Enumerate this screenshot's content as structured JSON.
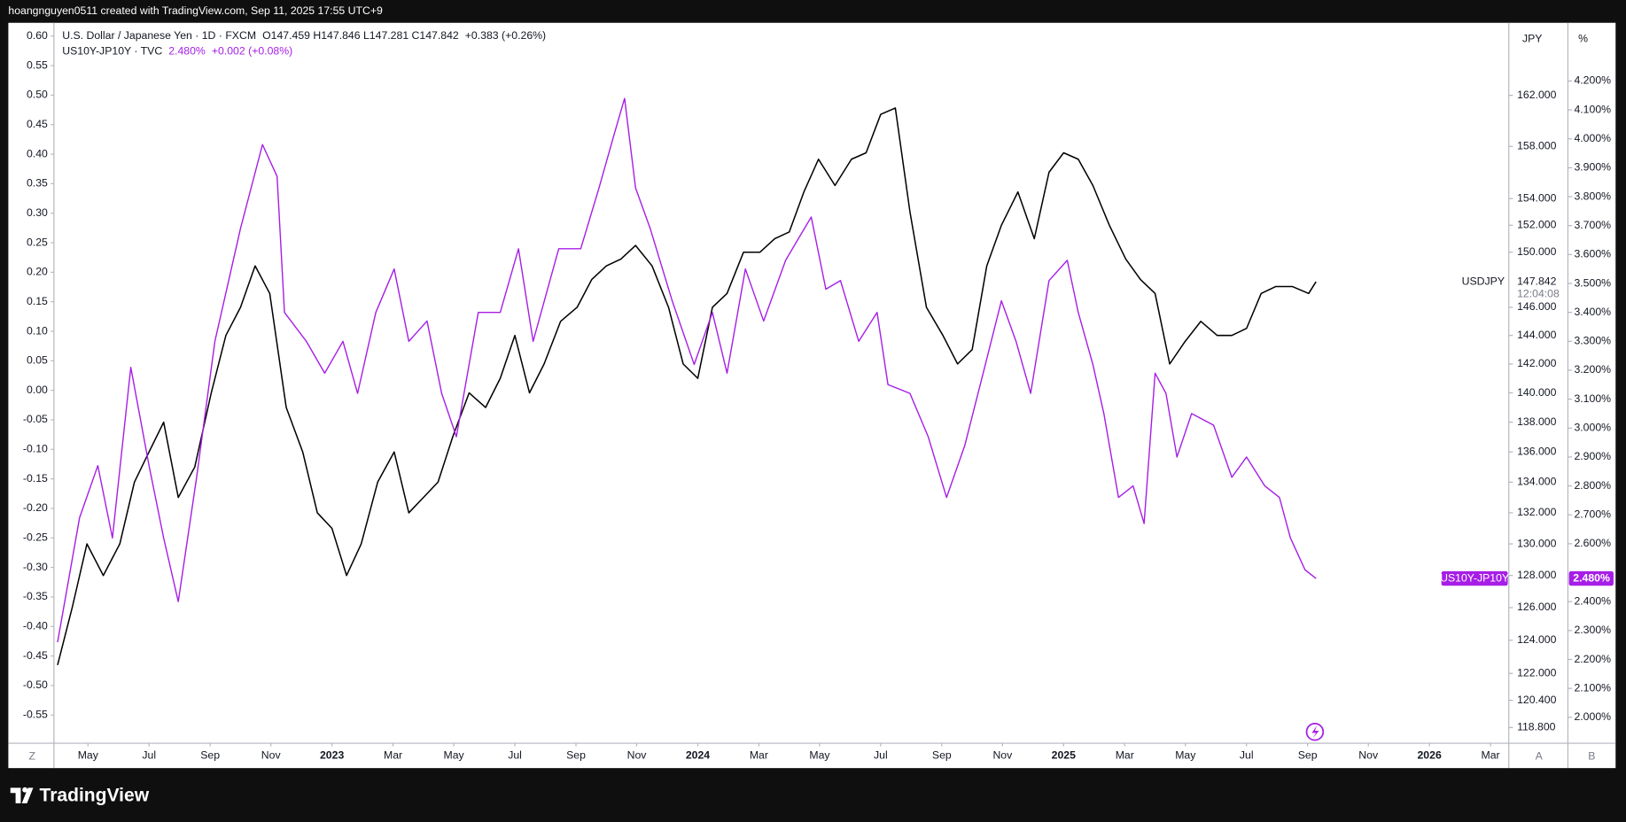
{
  "header": "hoangnguyen0511 created with TradingView.com, Sep 11, 2025 17:55 UTC+9",
  "footer_logo": "TradingView",
  "chart_data": {
    "type": "line",
    "grid": false,
    "corner_labels": [
      "Z",
      "A",
      "B"
    ],
    "xlim": [
      2022.24,
      2026.217
    ],
    "xticks": [
      {
        "value": 2022.333,
        "label": "May"
      },
      {
        "value": 2022.5,
        "label": "Jul"
      },
      {
        "value": 2022.667,
        "label": "Sep"
      },
      {
        "value": 2022.833,
        "label": "Nov"
      },
      2023,
      {
        "value": 2023.167,
        "label": "Mar"
      },
      {
        "value": 2023.333,
        "label": "May"
      },
      {
        "value": 2023.5,
        "label": "Jul"
      },
      {
        "value": 2023.667,
        "label": "Sep"
      },
      {
        "value": 2023.833,
        "label": "Nov"
      },
      2024,
      {
        "value": 2024.167,
        "label": "Mar"
      },
      {
        "value": 2024.333,
        "label": "May"
      },
      {
        "value": 2024.5,
        "label": "Jul"
      },
      {
        "value": 2024.667,
        "label": "Sep"
      },
      {
        "value": 2024.833,
        "label": "Nov"
      },
      2025,
      {
        "value": 2025.167,
        "label": "Mar"
      },
      {
        "value": 2025.333,
        "label": "May"
      },
      {
        "value": 2025.5,
        "label": "Jul"
      },
      {
        "value": 2025.667,
        "label": "Sep"
      },
      {
        "value": 2025.833,
        "label": "Nov"
      },
      2026,
      {
        "value": 2026.167,
        "label": "Mar"
      }
    ],
    "left_axis": {
      "lim": [
        -0.596,
        0.619
      ],
      "ticks": [
        {
          "value": 0.6,
          "label": "0.60"
        },
        0.55,
        {
          "value": 0.5,
          "label": "0.50"
        },
        0.45,
        {
          "value": 0.4,
          "label": "0.40"
        },
        0.35,
        {
          "value": 0.3,
          "label": "0.30"
        },
        0.25,
        {
          "value": 0.2,
          "label": "0.20"
        },
        0.15,
        {
          "value": 0.1,
          "label": "0.10"
        },
        0.05,
        {
          "value": 0,
          "label": "0.00"
        },
        -0.05,
        {
          "value": -0.1,
          "label": "-0.10"
        },
        -0.15,
        {
          "value": -0.2,
          "label": "-0.20"
        },
        -0.25,
        {
          "value": -0.3,
          "label": "-0.30"
        },
        -0.35,
        {
          "value": -0.4,
          "label": "-0.40"
        },
        -0.45,
        {
          "value": -0.5,
          "label": "-0.50"
        },
        -0.55
      ]
    },
    "ylabel": "JPY",
    "ylog": true,
    "ylim": [
      117.95,
      167.7
    ],
    "yticks": [
      {
        "value": 162,
        "label": "162.000"
      },
      {
        "value": 158,
        "label": "158.000"
      },
      {
        "value": 154,
        "label": "154.000"
      },
      {
        "value": 152,
        "label": "152.000"
      },
      {
        "value": 150,
        "label": "150.000"
      },
      {
        "value": 146,
        "label": "146.000"
      },
      {
        "value": 144,
        "label": "144.000"
      },
      {
        "value": 142,
        "label": "142.000"
      },
      {
        "value": 140,
        "label": "140.000"
      },
      {
        "value": 138,
        "label": "138.000"
      },
      {
        "value": 136,
        "label": "136.000"
      },
      {
        "value": 134,
        "label": "134.000"
      },
      {
        "value": 132,
        "label": "132.000"
      },
      {
        "value": 130,
        "label": "130.000"
      },
      {
        "value": 128,
        "label": "128.000"
      },
      {
        "value": 126,
        "label": "126.000"
      },
      {
        "value": 124,
        "label": "124.000"
      },
      {
        "value": 122,
        "label": "122.000"
      },
      {
        "value": 120.4,
        "label": "120.400"
      },
      {
        "value": 118.8,
        "label": "118.800"
      }
    ],
    "y2label": "%",
    "y2lim": [
      1.914,
      4.394
    ],
    "y2ticks": [
      {
        "value": 4.2,
        "label": "4.200%"
      },
      {
        "value": 4.1,
        "label": "4.100%"
      },
      {
        "value": 4.0,
        "label": "4.000%"
      },
      {
        "value": 3.9,
        "label": "3.900%"
      },
      {
        "value": 3.8,
        "label": "3.800%"
      },
      {
        "value": 3.7,
        "label": "3.700%"
      },
      {
        "value": 3.6,
        "label": "3.600%"
      },
      {
        "value": 3.5,
        "label": "3.500%"
      },
      {
        "value": 3.4,
        "label": "3.400%"
      },
      {
        "value": 3.3,
        "label": "3.300%"
      },
      {
        "value": 3.2,
        "label": "3.200%"
      },
      {
        "value": 3.1,
        "label": "3.100%"
      },
      {
        "value": 3.0,
        "label": "3.000%"
      },
      {
        "value": 2.9,
        "label": "2.900%"
      },
      {
        "value": 2.8,
        "label": "2.800%"
      },
      {
        "value": 2.7,
        "label": "2.700%"
      },
      {
        "value": 2.6,
        "label": "2.600%"
      },
      {
        "value": 2.4,
        "label": "2.400%"
      },
      {
        "value": 2.3,
        "label": "2.300%"
      },
      {
        "value": 2.2,
        "label": "2.200%"
      },
      {
        "value": 2.1,
        "label": "2.100%"
      },
      {
        "value": 2.0,
        "label": "2.000%"
      }
    ],
    "series": [
      {
        "name": "USDJPY",
        "color": "#000000",
        "axis": "y",
        "legend_title": "U.S. Dollar / Japanese Yen · 1D · FXCM",
        "legend_ohlc": "O147.459 H147.846 L147.281 C147.842",
        "legend_change": "+0.383 (+0.26%)",
        "countdown": "12:04:08",
        "x": [
          2022.25,
          2022.29,
          2022.33,
          2022.375,
          2022.42,
          2022.46,
          2022.5,
          2022.54,
          2022.58,
          2022.625,
          2022.67,
          2022.71,
          2022.75,
          2022.79,
          2022.83,
          2022.875,
          2022.92,
          2022.96,
          2023.0,
          2023.04,
          2023.08,
          2023.125,
          2023.17,
          2023.21,
          2023.25,
          2023.29,
          2023.33,
          2023.375,
          2023.42,
          2023.46,
          2023.5,
          2023.54,
          2023.58,
          2023.625,
          2023.67,
          2023.71,
          2023.75,
          2023.79,
          2023.83,
          2023.875,
          2023.92,
          2023.96,
          2024.0,
          2024.04,
          2024.08,
          2024.125,
          2024.17,
          2024.21,
          2024.25,
          2024.29,
          2024.33,
          2024.375,
          2024.42,
          2024.46,
          2024.5,
          2024.54,
          2024.58,
          2024.625,
          2024.67,
          2024.71,
          2024.75,
          2024.79,
          2024.83,
          2024.875,
          2024.92,
          2024.96,
          2025.0,
          2025.04,
          2025.08,
          2025.125,
          2025.17,
          2025.21,
          2025.25,
          2025.29,
          2025.33,
          2025.375,
          2025.42,
          2025.46,
          2025.5,
          2025.54,
          2025.58,
          2025.625,
          2025.67,
          2025.69
        ],
        "values": [
          122.5,
          126,
          130,
          128,
          130,
          134,
          136,
          138,
          133,
          135,
          140,
          144,
          146,
          149,
          147,
          139,
          136,
          132,
          131,
          128,
          130,
          134,
          136,
          132,
          133,
          134,
          137,
          140,
          139,
          141,
          144,
          140,
          142,
          145,
          146,
          148,
          149,
          149.5,
          150.5,
          149,
          146,
          142,
          141,
          146,
          147,
          150,
          150,
          151,
          151.5,
          154.5,
          157,
          155,
          157,
          157.5,
          160.5,
          161,
          153,
          146,
          144,
          142,
          143,
          149,
          152,
          154.5,
          151,
          156,
          157.5,
          157,
          155,
          152,
          149.5,
          148,
          147,
          142,
          143.5,
          145,
          144,
          144,
          144.5,
          147,
          147.5,
          147.5,
          147,
          147.842
        ]
      },
      {
        "name": "US10Y-JP10Y",
        "color": "#a61ee6",
        "axis": "y2",
        "legend_title": "US10Y-JP10Y · TVC",
        "legend_value": "2.480%",
        "legend_change": "+0.002 (+0.08%)",
        "price_tag": "2.480%",
        "x": [
          2022.25,
          2022.31,
          2022.36,
          2022.4,
          2022.45,
          2022.5,
          2022.54,
          2022.58,
          2022.63,
          2022.68,
          2022.75,
          2022.81,
          2022.85,
          2022.87,
          2022.93,
          2022.98,
          2023.03,
          2023.07,
          2023.12,
          2023.17,
          2023.21,
          2023.26,
          2023.3,
          2023.34,
          2023.4,
          2023.46,
          2023.51,
          2023.55,
          2023.62,
          2023.68,
          2023.73,
          2023.77,
          2023.8,
          2023.83,
          2023.87,
          2023.93,
          2023.99,
          2024.04,
          2024.08,
          2024.13,
          2024.18,
          2024.24,
          2024.31,
          2024.35,
          2024.39,
          2024.44,
          2024.49,
          2024.52,
          2024.58,
          2024.63,
          2024.68,
          2024.73,
          2024.78,
          2024.83,
          2024.87,
          2024.91,
          2024.96,
          2025.01,
          2025.04,
          2025.08,
          2025.11,
          2025.15,
          2025.19,
          2025.22,
          2025.25,
          2025.28,
          2025.31,
          2025.35,
          2025.41,
          2025.46,
          2025.5,
          2025.55,
          2025.59,
          2025.62,
          2025.66,
          2025.69
        ],
        "values": [
          2.26,
          2.69,
          2.87,
          2.62,
          3.21,
          2.87,
          2.62,
          2.4,
          2.83,
          3.3,
          3.69,
          3.98,
          3.87,
          3.4,
          3.3,
          3.19,
          3.3,
          3.12,
          3.4,
          3.55,
          3.3,
          3.37,
          3.12,
          2.97,
          3.4,
          3.4,
          3.62,
          3.3,
          3.62,
          3.62,
          3.83,
          4.01,
          4.14,
          3.83,
          3.69,
          3.44,
          3.22,
          3.4,
          3.19,
          3.55,
          3.37,
          3.58,
          3.73,
          3.48,
          3.51,
          3.3,
          3.4,
          3.15,
          3.12,
          2.97,
          2.76,
          2.94,
          3.19,
          3.44,
          3.3,
          3.12,
          3.51,
          3.58,
          3.4,
          3.22,
          3.05,
          2.76,
          2.8,
          2.67,
          3.19,
          3.12,
          2.9,
          3.05,
          3.01,
          2.83,
          2.9,
          2.8,
          2.76,
          2.62,
          2.51,
          2.48
        ]
      }
    ]
  }
}
